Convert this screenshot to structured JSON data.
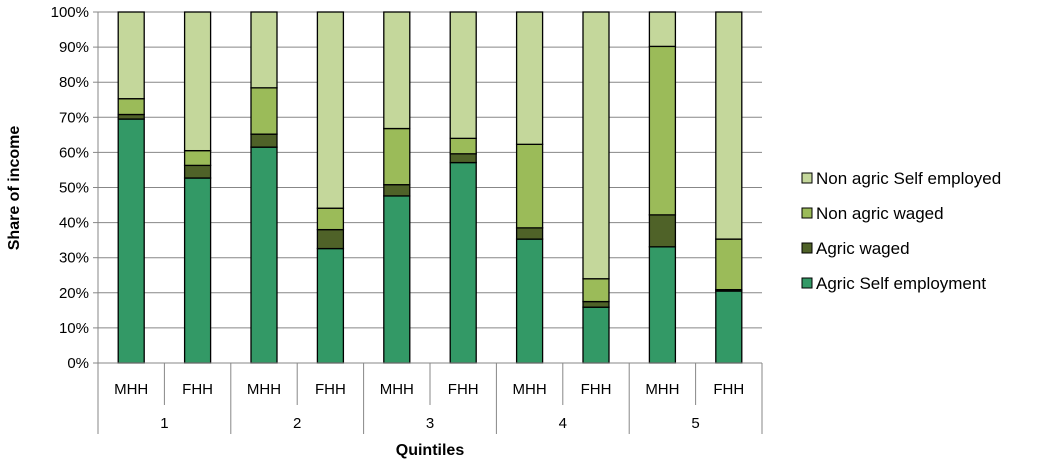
{
  "chart_data": {
    "type": "bar",
    "stacked": true,
    "title": "",
    "xlabel": "Quintiles",
    "ylabel": "Share of income",
    "ylim": [
      0,
      100
    ],
    "ytick_format": "percent",
    "yticks": [
      "0%",
      "10%",
      "20%",
      "30%",
      "40%",
      "50%",
      "60%",
      "70%",
      "80%",
      "90%",
      "100%"
    ],
    "grid": true,
    "legend_position": "right",
    "groups": [
      {
        "label": "1",
        "categories": [
          "MHH",
          "FHH"
        ]
      },
      {
        "label": "2",
        "categories": [
          "MHH",
          "FHH"
        ]
      },
      {
        "label": "3",
        "categories": [
          "MHH",
          "FHH"
        ]
      },
      {
        "label": "4",
        "categories": [
          "MHH",
          "FHH"
        ]
      },
      {
        "label": "5",
        "categories": [
          "MHH",
          "FHH"
        ]
      }
    ],
    "categories": [
      "MHH",
      "FHH",
      "MHH",
      "FHH",
      "MHH",
      "FHH",
      "MHH",
      "FHH",
      "MHH",
      "FHH"
    ],
    "series": [
      {
        "name": "Agric Self employment",
        "color": "#339966",
        "values": [
          69.5,
          52.7,
          61.5,
          32.6,
          47.6,
          57.1,
          35.3,
          15.9,
          33.1,
          20.5
        ]
      },
      {
        "name": "Agric waged",
        "color": "#4f6228",
        "values": [
          1.3,
          3.6,
          3.7,
          5.4,
          3.2,
          2.5,
          3.2,
          1.6,
          9.1,
          0.4
        ]
      },
      {
        "name": "Non agric waged",
        "color": "#9bbb59",
        "values": [
          4.5,
          4.2,
          13.2,
          6.1,
          16.0,
          4.4,
          23.8,
          6.5,
          48.0,
          14.4
        ]
      },
      {
        "name": "Non agric Self employed",
        "color": "#c4d79b",
        "values": [
          24.7,
          39.5,
          21.6,
          55.9,
          33.2,
          36.0,
          37.7,
          76.0,
          9.8,
          64.7
        ]
      }
    ],
    "legend_order": [
      "Non agric Self employed",
      "Non agric waged",
      "Agric waged",
      "Agric Self employment"
    ]
  }
}
